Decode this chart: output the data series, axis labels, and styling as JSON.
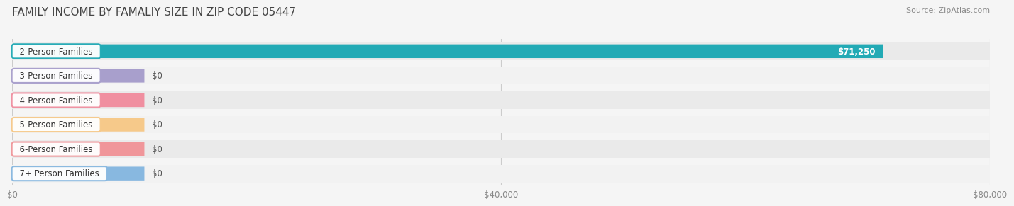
{
  "title": "FAMILY INCOME BY FAMALIY SIZE IN ZIP CODE 05447",
  "source": "Source: ZipAtlas.com",
  "categories": [
    "2-Person Families",
    "3-Person Families",
    "4-Person Families",
    "5-Person Families",
    "6-Person Families",
    "7+ Person Families"
  ],
  "values": [
    71250,
    0,
    0,
    0,
    0,
    0
  ],
  "bar_colors": [
    "#22aab5",
    "#a89fcc",
    "#f08fa0",
    "#f6c98a",
    "#f0969a",
    "#88b8e0"
  ],
  "bar_labels": [
    "$71,250",
    "$0",
    "$0",
    "$0",
    "$0",
    "$0"
  ],
  "xlim": [
    0,
    80000
  ],
  "xticks": [
    0,
    40000,
    80000
  ],
  "xticklabels": [
    "$0",
    "$40,000",
    "$80,000"
  ],
  "background_color": "#f5f5f5",
  "row_bg_even": "#eaeaea",
  "row_bg_odd": "#f2f2f2",
  "title_fontsize": 11,
  "label_fontsize": 8.5,
  "tick_fontsize": 8.5,
  "source_fontsize": 8
}
